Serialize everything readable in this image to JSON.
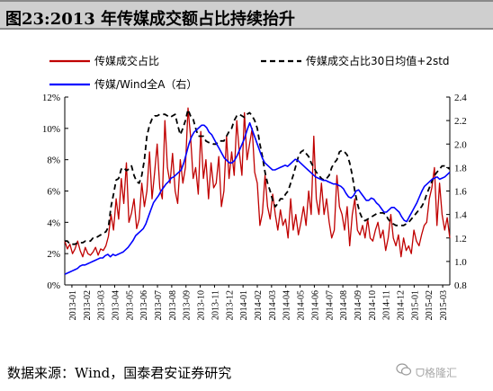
{
  "header": {
    "title": "图23:2013 年传媒成交额占比持续抬升"
  },
  "footer": {
    "source": "数据来源：Wind，国泰君安证券研究"
  },
  "watermark": {
    "text": "ᗜ格隆汇",
    "icon": "wechat-icon"
  },
  "colors": {
    "share": "#c00000",
    "band": "#000000",
    "relative": "#0000ff"
  },
  "chart_data": {
    "type": "line",
    "x_tick_labels": [
      "2013-01",
      "2013-02",
      "2013-03",
      "2013-04",
      "2013-05",
      "2013-06",
      "2013-07",
      "2013-08",
      "2013-09",
      "2013-10",
      "2013-11",
      "2013-12",
      "2014-01",
      "2014-02",
      "2014-03",
      "2014-04",
      "2014-05",
      "2014-06",
      "2014-07",
      "2014-08",
      "2014-09",
      "2014-10",
      "2014-11",
      "2014-12",
      "2015-01",
      "2015-02",
      "2015-03"
    ],
    "y_left": {
      "ticks": [
        "0%",
        "2%",
        "4%",
        "6%",
        "8%",
        "10%",
        "12%"
      ],
      "range": [
        0,
        12
      ]
    },
    "y_right": {
      "ticks": [
        "0.8",
        "1.0",
        "1.2",
        "1.4",
        "1.6",
        "1.8",
        "2.0",
        "2.2",
        "2.4"
      ],
      "range": [
        0.8,
        2.4
      ]
    },
    "grid": false,
    "legend_position": "top",
    "series": [
      {
        "name": "传媒成交占比",
        "axis": "left",
        "values": [
          2.8,
          2.3,
          2.6,
          2.0,
          2.3,
          2.8,
          2.2,
          1.8,
          2.4,
          2.0,
          1.9,
          2.1,
          2.4,
          1.9,
          2.3,
          2.2,
          2.5,
          3.1,
          4.5,
          3.5,
          5.5,
          4.2,
          6.8,
          5.2,
          7.8,
          4.0,
          4.6,
          5.5,
          3.6,
          4.2,
          6.5,
          5.0,
          6.0,
          8.5,
          5.5,
          7.2,
          9.0,
          6.2,
          5.5,
          10.5,
          7.5,
          6.5,
          8.4,
          6.0,
          5.2,
          8.0,
          6.5,
          7.5,
          11.3,
          9.5,
          6.8,
          7.5,
          5.8,
          9.8,
          6.8,
          8.0,
          5.5,
          7.8,
          6.2,
          6.5,
          8.2,
          5.0,
          6.0,
          9.5,
          6.8,
          8.5,
          7.0,
          10.5,
          8.5,
          7.0,
          11.0,
          8.0,
          9.0,
          10.0,
          7.2,
          6.5,
          3.8,
          4.6,
          7.0,
          5.0,
          4.2,
          5.8,
          4.5,
          3.5,
          4.8,
          3.8,
          4.2,
          3.0,
          5.5,
          3.5,
          4.5,
          3.2,
          4.0,
          5.0,
          3.8,
          6.0,
          4.5,
          9.5,
          5.5,
          4.5,
          6.5,
          4.5,
          5.5,
          4.0,
          3.0,
          3.5,
          7.0,
          5.0,
          4.5,
          3.5,
          5.0,
          2.5,
          4.5,
          5.5,
          3.5,
          3.2,
          3.8,
          3.0,
          4.2,
          3.0,
          2.8,
          3.5,
          4.0,
          3.0,
          3.5,
          2.2,
          3.0,
          4.5,
          3.0,
          2.5,
          3.2,
          1.8,
          3.0,
          2.2,
          2.5,
          2.0,
          3.5,
          2.8,
          2.5,
          3.2,
          3.8,
          4.0,
          5.5,
          6.2,
          7.5,
          3.8,
          6.5,
          4.5,
          3.5,
          4.3,
          3.0
        ]
      },
      {
        "name": "传媒成交占比30日均值+2std",
        "axis": "left",
        "values": [
          2.8,
          2.8,
          2.6,
          2.6,
          2.6,
          2.7,
          2.7,
          2.7,
          2.8,
          2.8,
          2.8,
          3.0,
          3.0,
          3.1,
          3.2,
          3.3,
          3.4,
          3.7,
          5.0,
          5.8,
          6.7,
          6.8,
          7.4,
          7.5,
          7.3,
          7.4,
          7.6,
          7.0,
          6.6,
          6.5,
          7.0,
          8.0,
          9.5,
          10.2,
          10.6,
          10.8,
          10.8,
          10.9,
          10.9,
          10.9,
          10.8,
          10.7,
          10.8,
          10.9,
          10.2,
          9.6,
          10.0,
          10.5,
          11.2,
          10.8,
          10.6,
          10.0,
          9.5,
          9.5,
          9.5,
          9.2,
          9.1,
          9.1,
          9.0,
          9.0,
          9.2,
          9.2,
          9.2,
          9.5,
          9.8,
          10.0,
          10.5,
          10.8,
          10.9,
          10.8,
          10.7,
          10.9,
          11.0,
          10.8,
          10.5,
          10.0,
          9.0,
          8.2,
          7.2,
          6.5,
          6.0,
          5.4,
          5.0,
          5.2,
          5.5,
          5.5,
          5.8,
          6.0,
          6.5,
          7.0,
          7.6,
          8.2,
          8.5,
          8.6,
          8.4,
          8.2,
          7.8,
          7.5,
          7.2,
          7.0,
          6.8,
          6.7,
          6.8,
          7.0,
          7.5,
          7.8,
          8.0,
          8.5,
          8.6,
          8.5,
          8.3,
          7.8,
          7.0,
          6.0,
          5.2,
          4.6,
          4.2,
          4.1,
          4.2,
          4.3,
          4.4,
          4.5,
          4.6,
          4.6,
          4.6,
          4.5,
          4.2,
          4.0,
          3.9,
          3.8,
          3.8,
          3.8,
          3.8,
          3.9,
          4.0,
          4.2,
          4.4,
          4.6,
          4.8,
          5.0,
          5.3,
          5.8,
          6.2,
          6.6,
          7.0,
          7.2,
          7.4,
          7.6,
          7.6,
          7.5,
          7.4
        ]
      },
      {
        "name": "传媒/Wind全A（右）",
        "axis": "right",
        "values": [
          0.89,
          0.9,
          0.91,
          0.92,
          0.93,
          0.94,
          0.96,
          0.97,
          0.97,
          0.98,
          0.99,
          1.0,
          1.01,
          1.02,
          1.03,
          1.03,
          1.05,
          1.06,
          1.04,
          1.06,
          1.05,
          1.06,
          1.07,
          1.08,
          1.1,
          1.12,
          1.15,
          1.18,
          1.22,
          1.24,
          1.26,
          1.28,
          1.32,
          1.38,
          1.44,
          1.5,
          1.53,
          1.56,
          1.6,
          1.63,
          1.66,
          1.68,
          1.71,
          1.72,
          1.74,
          1.76,
          1.78,
          1.84,
          1.92,
          2.0,
          2.06,
          2.1,
          2.12,
          2.14,
          2.16,
          2.16,
          2.14,
          2.1,
          2.08,
          2.04,
          2.0,
          1.96,
          1.92,
          1.88,
          1.86,
          1.84,
          1.84,
          1.86,
          1.9,
          1.95,
          2.0,
          2.05,
          2.12,
          2.18,
          2.12,
          2.06,
          2.0,
          1.94,
          1.88,
          1.84,
          1.82,
          1.8,
          1.78,
          1.78,
          1.79,
          1.8,
          1.81,
          1.82,
          1.81,
          1.83,
          1.85,
          1.87,
          1.86,
          1.84,
          1.82,
          1.8,
          1.78,
          1.76,
          1.74,
          1.72,
          1.71,
          1.7,
          1.69,
          1.69,
          1.68,
          1.67,
          1.66,
          1.66,
          1.65,
          1.64,
          1.62,
          1.58,
          1.55,
          1.54,
          1.56,
          1.6,
          1.61,
          1.58,
          1.55,
          1.52,
          1.52,
          1.54,
          1.53,
          1.5,
          1.48,
          1.45,
          1.42,
          1.42,
          1.44,
          1.46,
          1.46,
          1.44,
          1.42,
          1.38,
          1.35,
          1.34,
          1.38,
          1.42,
          1.46,
          1.5,
          1.55,
          1.6,
          1.64,
          1.66,
          1.68,
          1.7,
          1.71,
          1.72,
          1.7,
          1.71,
          1.72,
          1.74,
          1.76
        ]
      }
    ]
  }
}
